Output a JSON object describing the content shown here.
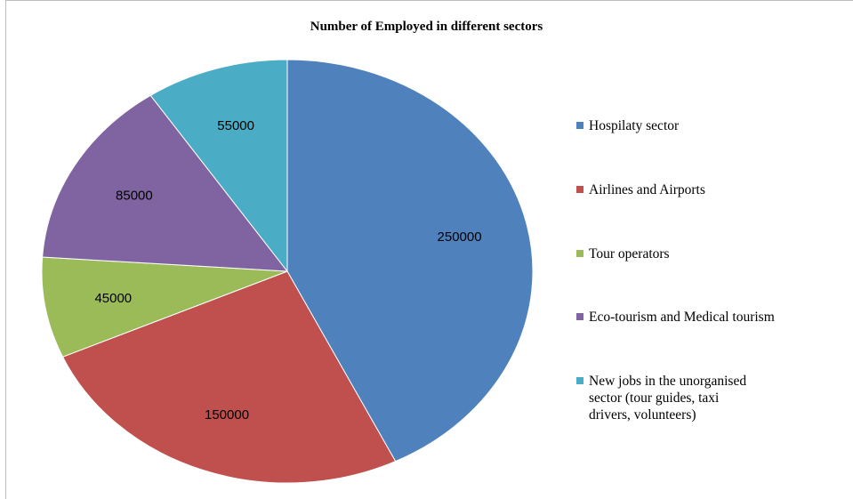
{
  "chart_data": {
    "type": "pie",
    "title": "Number of Employed in different sectors",
    "categories": [
      "Hospilaty sector",
      "Airlines and Airports",
      "Tour operators",
      "Eco-tourism and Medical tourism",
      "New jobs in the unorganised\nsector (tour guides, taxi\ndrivers, volunteers)"
    ],
    "values": [
      250000,
      150000,
      45000,
      85000,
      55000
    ],
    "data_labels": [
      "250000",
      "150000",
      "45000",
      "85000",
      "55000"
    ],
    "colors": [
      "#4F81BD",
      "#C0504D",
      "#9BBB59",
      "#8064A2",
      "#4BACC6"
    ],
    "legend_position": "right"
  }
}
